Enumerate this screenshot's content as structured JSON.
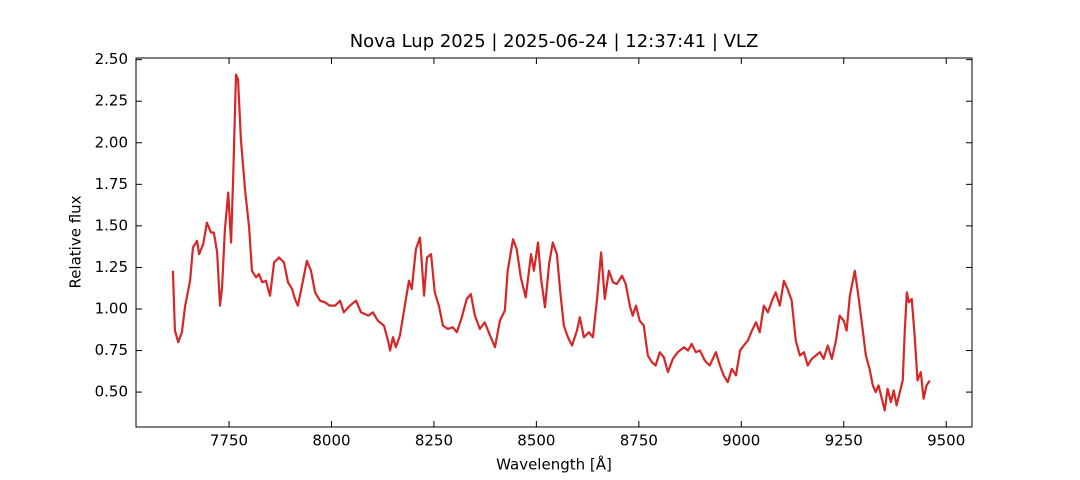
{
  "chart_data": {
    "type": "line",
    "title": "Nova Lup 2025 | 2025-06-24 | 12:37:41 | VLZ",
    "x_label": "Wavelength [Å]",
    "y_label": "Relative flux",
    "xlim": [
      7523,
      9563
    ],
    "ylim": [
      0.29,
      2.51
    ],
    "xticks": [
      7750,
      8000,
      8250,
      8500,
      8750,
      9000,
      9250,
      9500
    ],
    "yticks": [
      {
        "value": 0.5,
        "label": "0.50"
      },
      {
        "value": 0.75,
        "label": "0.75"
      },
      {
        "value": 1.0,
        "label": "1.00"
      },
      {
        "value": 1.25,
        "label": "1.25"
      },
      {
        "value": 1.5,
        "label": "1.50"
      },
      {
        "value": 1.75,
        "label": "1.75"
      },
      {
        "value": 2.0,
        "label": "2.00"
      },
      {
        "value": 2.25,
        "label": "2.25"
      },
      {
        "value": 2.5,
        "label": "2.50"
      }
    ],
    "grid": false,
    "color": "#d62728",
    "x": [
      7613,
      7618,
      7626,
      7635,
      7643,
      7655,
      7662,
      7672,
      7677,
      7687,
      7696,
      7706,
      7713,
      7721,
      7728,
      7733,
      7740,
      7748,
      7755,
      7760,
      7767,
      7772,
      7779,
      7789,
      7799,
      7806,
      7816,
      7823,
      7831,
      7840,
      7850,
      7860,
      7872,
      7884,
      7894,
      7904,
      7911,
      7918,
      7928,
      7940,
      7950,
      7960,
      7972,
      7984,
      7996,
      8009,
      8021,
      8030,
      8045,
      8060,
      8072,
      8090,
      8101,
      8113,
      8128,
      8138,
      8143,
      8150,
      8157,
      8167,
      8179,
      8189,
      8196,
      8206,
      8216,
      8226,
      8233,
      8243,
      8252,
      8262,
      8272,
      8284,
      8296,
      8306,
      8318,
      8330,
      8340,
      8350,
      8362,
      8374,
      8387,
      8399,
      8411,
      8423,
      8430,
      8443,
      8452,
      8462,
      8474,
      8487,
      8494,
      8504,
      8511,
      8521,
      8531,
      8540,
      8550,
      8558,
      8567,
      8577,
      8587,
      8599,
      8606,
      8616,
      8628,
      8638,
      8648,
      8658,
      8667,
      8677,
      8687,
      8696,
      8709,
      8718,
      8728,
      8735,
      8743,
      8752,
      8762,
      8772,
      8782,
      8791,
      8801,
      8811,
      8821,
      8833,
      8845,
      8860,
      8870,
      8879,
      8889,
      8899,
      8911,
      8923,
      8938,
      8948,
      8957,
      8967,
      8977,
      8987,
      8997,
      9006,
      9016,
      9026,
      9036,
      9045,
      9055,
      9065,
      9075,
      9084,
      9094,
      9104,
      9113,
      9123,
      9133,
      9143,
      9153,
      9162,
      9172,
      9182,
      9192,
      9201,
      9211,
      9221,
      9231,
      9240,
      9250,
      9257,
      9265,
      9277,
      9284,
      9294,
      9304,
      9313,
      9321,
      9328,
      9335,
      9343,
      9350,
      9357,
      9365,
      9372,
      9379,
      9387,
      9394,
      9399,
      9404,
      9409,
      9416,
      9423,
      9430,
      9438,
      9445,
      9452,
      9460
    ],
    "values": [
      1.23,
      0.87,
      0.8,
      0.86,
      1.02,
      1.17,
      1.37,
      1.41,
      1.33,
      1.39,
      1.52,
      1.46,
      1.46,
      1.34,
      1.02,
      1.13,
      1.48,
      1.7,
      1.4,
      1.78,
      2.41,
      2.38,
      2.02,
      1.72,
      1.49,
      1.23,
      1.19,
      1.21,
      1.16,
      1.17,
      1.08,
      1.28,
      1.31,
      1.28,
      1.16,
      1.12,
      1.06,
      1.02,
      1.14,
      1.29,
      1.23,
      1.1,
      1.05,
      1.04,
      1.02,
      1.02,
      1.05,
      0.98,
      1.02,
      1.05,
      0.98,
      0.96,
      0.98,
      0.93,
      0.9,
      0.81,
      0.75,
      0.83,
      0.77,
      0.84,
      1.02,
      1.17,
      1.12,
      1.36,
      1.43,
      1.08,
      1.31,
      1.33,
      1.1,
      1.02,
      0.9,
      0.88,
      0.89,
      0.86,
      0.95,
      1.06,
      1.09,
      0.96,
      0.88,
      0.92,
      0.84,
      0.77,
      0.93,
      0.99,
      1.23,
      1.42,
      1.36,
      1.19,
      1.07,
      1.33,
      1.23,
      1.4,
      1.19,
      1.01,
      1.27,
      1.4,
      1.33,
      1.11,
      0.9,
      0.83,
      0.78,
      0.87,
      0.95,
      0.83,
      0.86,
      0.83,
      1.06,
      1.34,
      1.06,
      1.23,
      1.16,
      1.15,
      1.2,
      1.15,
      1.02,
      0.96,
      1.02,
      0.93,
      0.9,
      0.72,
      0.68,
      0.66,
      0.74,
      0.71,
      0.62,
      0.7,
      0.74,
      0.77,
      0.75,
      0.79,
      0.74,
      0.75,
      0.69,
      0.66,
      0.74,
      0.66,
      0.6,
      0.56,
      0.64,
      0.6,
      0.75,
      0.78,
      0.81,
      0.87,
      0.92,
      0.86,
      1.02,
      0.98,
      1.05,
      1.1,
      1.02,
      1.17,
      1.12,
      1.05,
      0.81,
      0.72,
      0.74,
      0.66,
      0.7,
      0.72,
      0.74,
      0.7,
      0.78,
      0.7,
      0.81,
      0.96,
      0.93,
      0.87,
      1.08,
      1.23,
      1.11,
      0.92,
      0.72,
      0.64,
      0.54,
      0.5,
      0.54,
      0.46,
      0.39,
      0.52,
      0.44,
      0.51,
      0.42,
      0.5,
      0.57,
      0.87,
      1.1,
      1.04,
      1.06,
      0.84,
      0.57,
      0.62,
      0.46,
      0.54,
      0.57
    ]
  }
}
